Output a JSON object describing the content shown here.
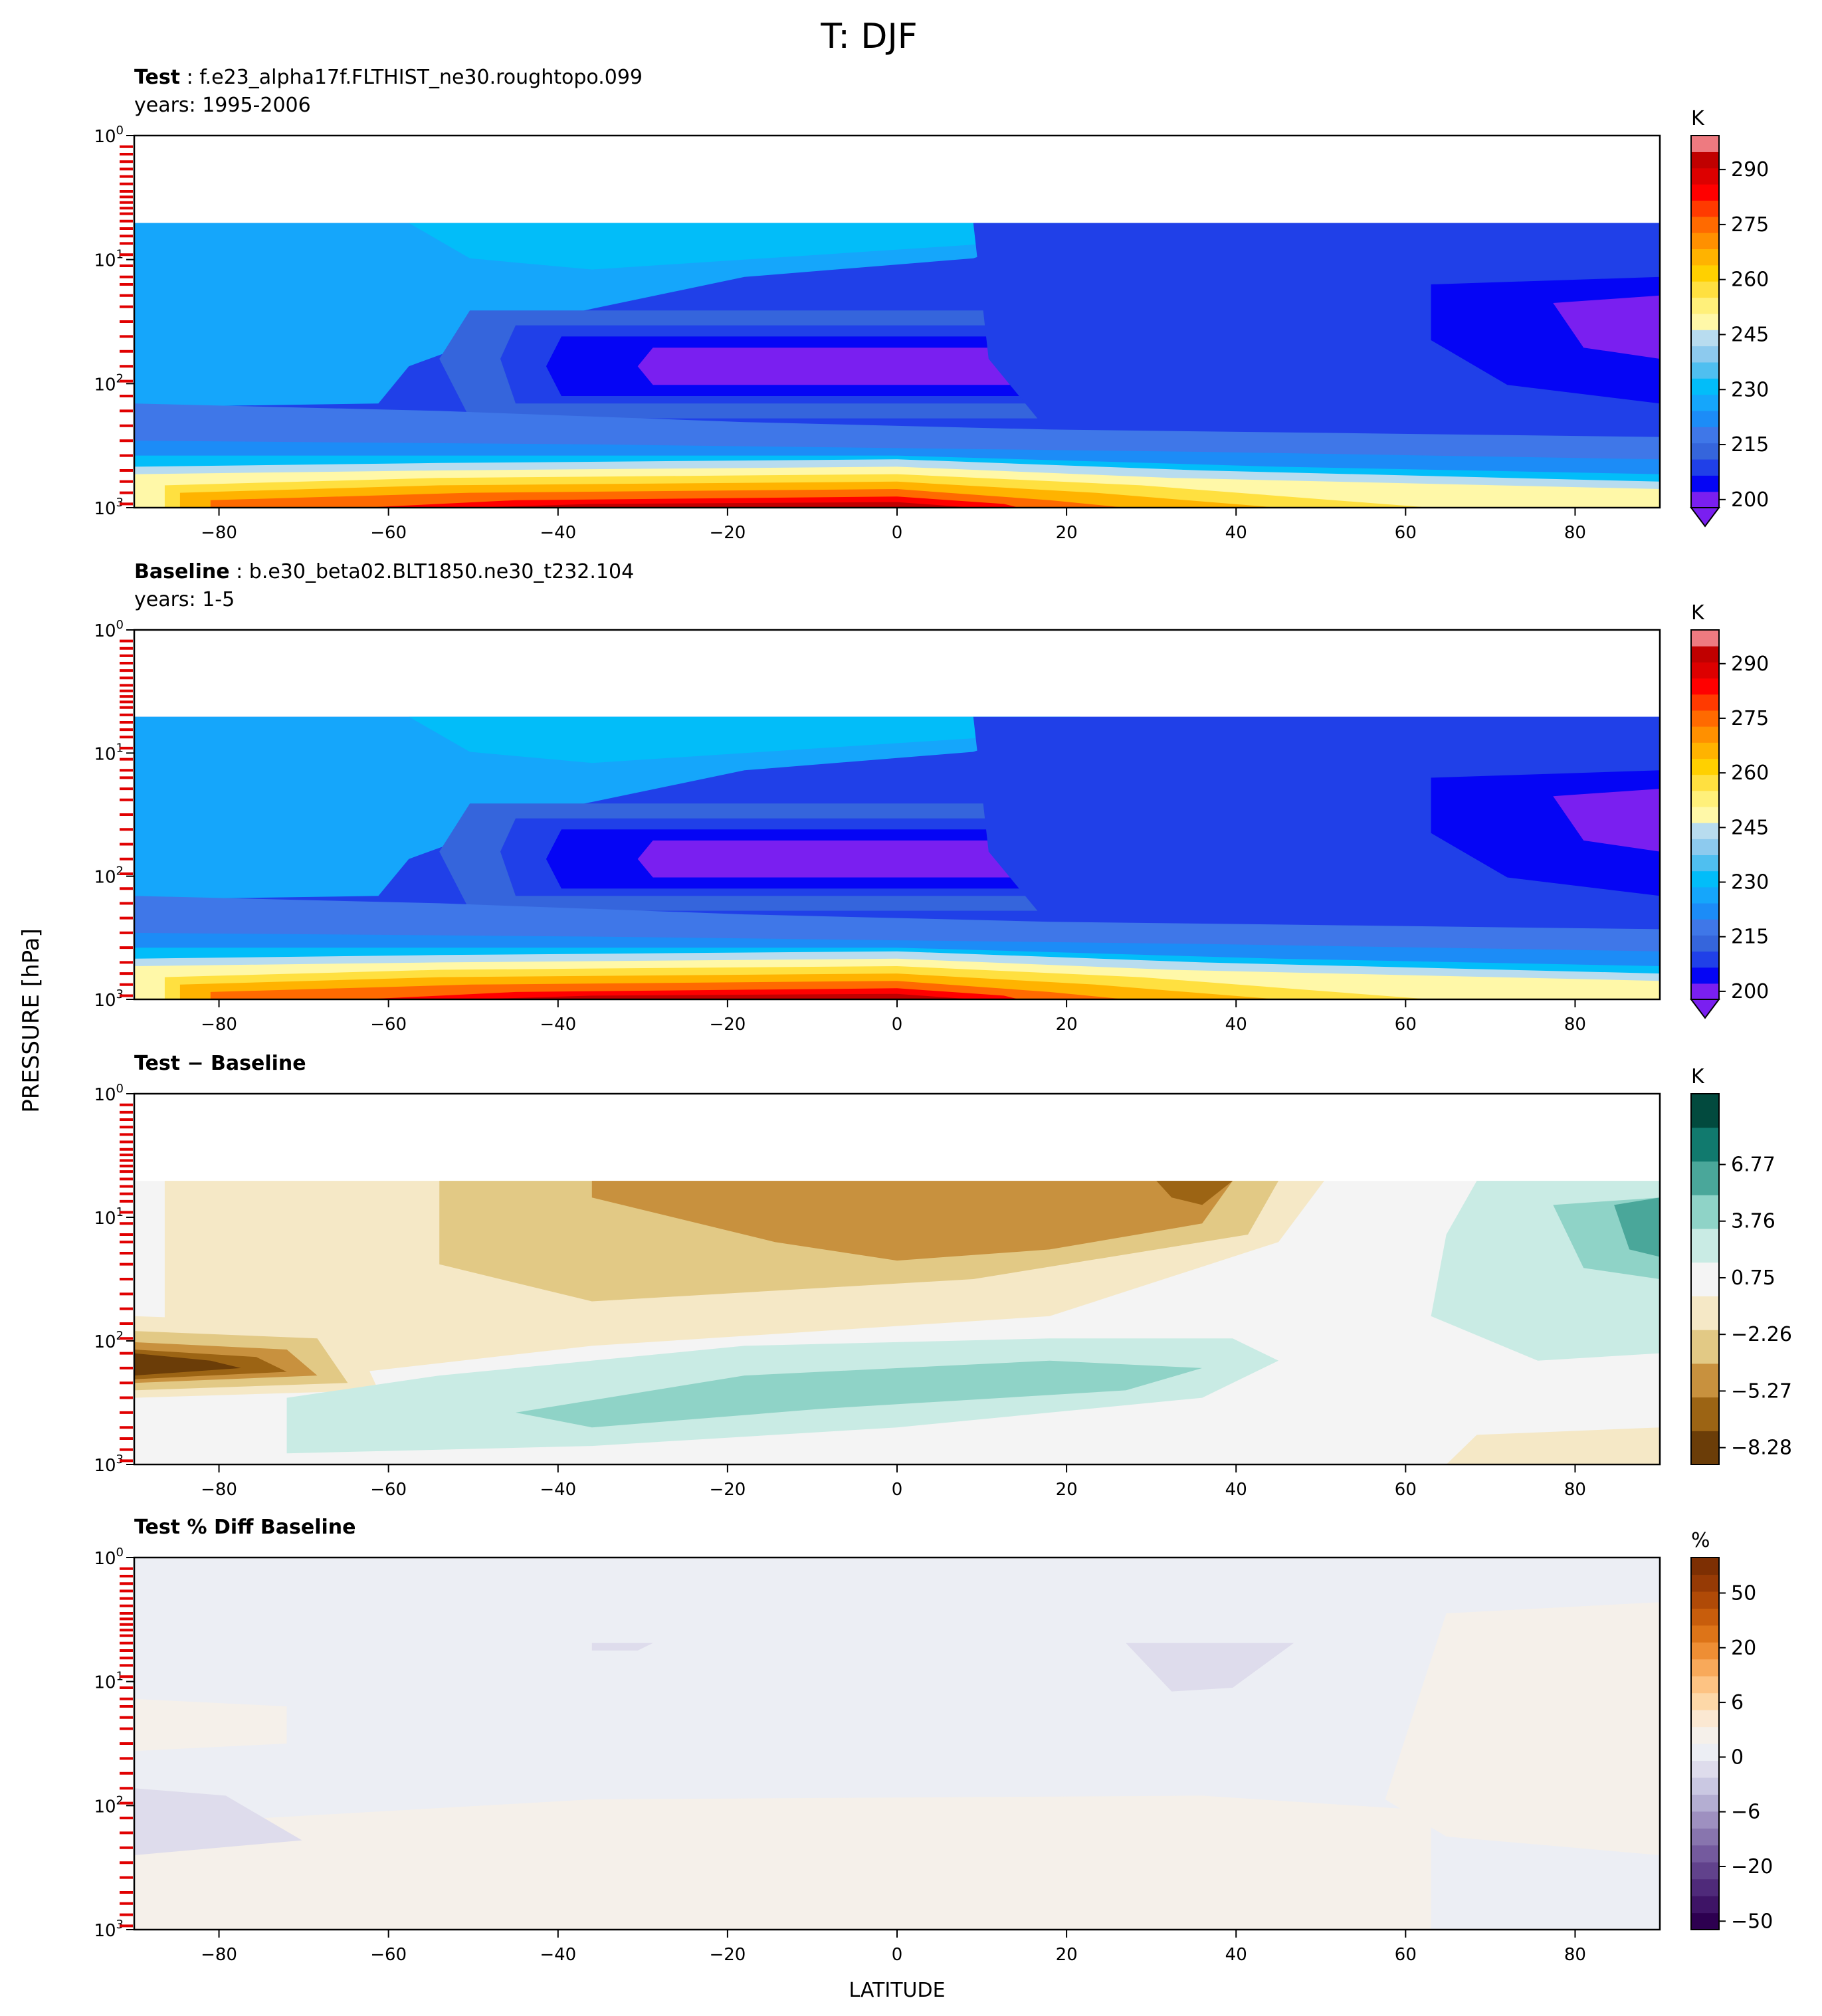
{
  "figure": {
    "title": "T: DJF",
    "ylabel": "PRESSURE [hPa]",
    "xlabel": "LATITUDE"
  },
  "chart_data": [
    {
      "type": "heatmap",
      "panel": "test",
      "title_bold": "Test",
      "title_rest": ": f.e23_alpha17f.FLTHIST_ne30.roughtopo.099",
      "subtitle": "years: 1995-2006",
      "x_ticks": [
        -80,
        -60,
        -40,
        -20,
        0,
        20,
        40,
        60,
        80
      ],
      "xlim": [
        -90,
        90
      ],
      "y_scale": "log",
      "ylim": [
        1000,
        1
      ],
      "y_ticks": [
        "10^0",
        "10^1",
        "10^2",
        "10^3"
      ],
      "model_levels_marked": true,
      "colorbar": {
        "unit": "K",
        "ticks": [
          "290",
          "275",
          "260",
          "245",
          "230",
          "215",
          "200"
        ],
        "range": [
          197.5,
          302.5
        ],
        "extend": "min",
        "palette": [
          "#7a1ff0",
          "#0505f5",
          "#2040e8",
          "#3565dc",
          "#3f77e8",
          "#1c8cf7",
          "#15a6fb",
          "#02bdf9",
          "#4fbff0",
          "#8dcaee",
          "#b8dcef",
          "#fff8a8",
          "#fff07a",
          "#ffe040",
          "#ffd000",
          "#ffb300",
          "#ff9000",
          "#ff6a00",
          "#ff3a00",
          "#ff0000",
          "#dd0000",
          "#c00000",
          "#ee7a80"
        ]
      }
    },
    {
      "type": "heatmap",
      "panel": "baseline",
      "title_bold": "Baseline",
      "title_rest": ": b.e30_beta02.BLT1850.ne30_t232.104",
      "subtitle": "years: 1-5",
      "x_ticks": [
        -80,
        -60,
        -40,
        -20,
        0,
        20,
        40,
        60,
        80
      ],
      "xlim": [
        -90,
        90
      ],
      "y_scale": "log",
      "ylim": [
        1000,
        1
      ],
      "y_ticks": [
        "10^0",
        "10^1",
        "10^2",
        "10^3"
      ],
      "model_levels_marked": true,
      "colorbar": {
        "unit": "K",
        "ticks": [
          "290",
          "275",
          "260",
          "245",
          "230",
          "215",
          "200"
        ],
        "range": [
          197.5,
          302.5
        ],
        "extend": "min",
        "palette": [
          "#7a1ff0",
          "#0505f5",
          "#2040e8",
          "#3565dc",
          "#3f77e8",
          "#1c8cf7",
          "#15a6fb",
          "#02bdf9",
          "#4fbff0",
          "#8dcaee",
          "#b8dcef",
          "#fff8a8",
          "#fff07a",
          "#ffe040",
          "#ffd000",
          "#ffb300",
          "#ff9000",
          "#ff6a00",
          "#ff3a00",
          "#ff0000",
          "#dd0000",
          "#c00000",
          "#ee7a80"
        ]
      }
    },
    {
      "type": "heatmap",
      "panel": "difference",
      "title_bold": "Test − Baseline",
      "title_rest": "",
      "subtitle": "",
      "x_ticks": [
        -80,
        -60,
        -40,
        -20,
        0,
        20,
        40,
        60,
        80
      ],
      "xlim": [
        -90,
        90
      ],
      "y_scale": "log",
      "ylim": [
        1000,
        1
      ],
      "y_ticks": [
        "10^0",
        "10^1",
        "10^2",
        "10^3"
      ],
      "model_levels_marked": true,
      "colorbar": {
        "unit": "K",
        "ticks": [
          "6.77",
          "3.76",
          "0.75",
          "−2.26",
          "−5.27",
          "−8.28"
        ],
        "range": [
          -8.28,
          8.28
        ],
        "extend": "neither",
        "palette": [
          "#6b3d08",
          "#9c6414",
          "#c8913e",
          "#e2c985",
          "#f5e8c6",
          "#f4f4f4",
          "#c9ebe4",
          "#8fd3c7",
          "#4aa79a",
          "#117a6e",
          "#024a3e"
        ]
      }
    },
    {
      "type": "heatmap",
      "panel": "percent_difference",
      "title_bold": "Test % Diff Baseline",
      "title_rest": "",
      "subtitle": "",
      "x_ticks": [
        -80,
        -60,
        -40,
        -20,
        0,
        20,
        40,
        60,
        80
      ],
      "xlim": [
        -90,
        90
      ],
      "y_scale": "log",
      "ylim": [
        1000,
        1
      ],
      "y_ticks": [
        "10^0",
        "10^1",
        "10^2",
        "10^3"
      ],
      "model_levels_marked": true,
      "colorbar": {
        "unit": "%",
        "ticks": [
          "50",
          "20",
          "6",
          "0",
          "−6",
          "−20",
          "−50"
        ],
        "range": [
          -100,
          100
        ],
        "extend": "neither",
        "palette": [
          "#2d0050",
          "#3e1466",
          "#4f2a7a",
          "#61428c",
          "#745a9e",
          "#8875ae",
          "#9e90c0",
          "#b4aed2",
          "#cac8e2",
          "#dedcec",
          "#eceef4",
          "#f5f0ea",
          "#fbe8d2",
          "#fdd8a8",
          "#fdc383",
          "#f8a95a",
          "#ee8e34",
          "#dd7418",
          "#c85d0c",
          "#b04a07",
          "#963a05",
          "#7d2f03"
        ]
      }
    }
  ]
}
